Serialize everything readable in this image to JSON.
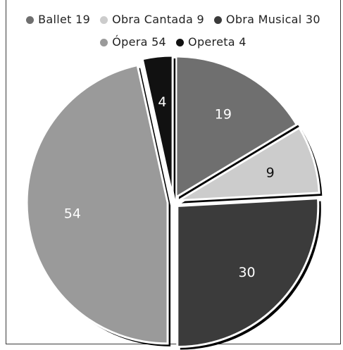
{
  "chart_data": {
    "type": "pie",
    "categories": [
      "Ballet",
      "Obra Cantada",
      "Obra Musical",
      "Ópera",
      "Opereta"
    ],
    "values": [
      19,
      9,
      30,
      54,
      4
    ],
    "colors": [
      "#6f6f6f",
      "#cccccc",
      "#3b3b3b",
      "#9a9a9a",
      "#111111"
    ],
    "label_colors": [
      "#ffffff",
      "#111111",
      "#ffffff",
      "#ffffff",
      "#ffffff"
    ],
    "legend_labels": [
      "Ballet 19",
      "Obra Cantada 9",
      "Obra Musical 30",
      "Ópera 54",
      "Opereta 4"
    ],
    "data_labels": [
      "19",
      "9",
      "30",
      "54",
      "4"
    ],
    "legend_position": "top",
    "exploded": true
  }
}
